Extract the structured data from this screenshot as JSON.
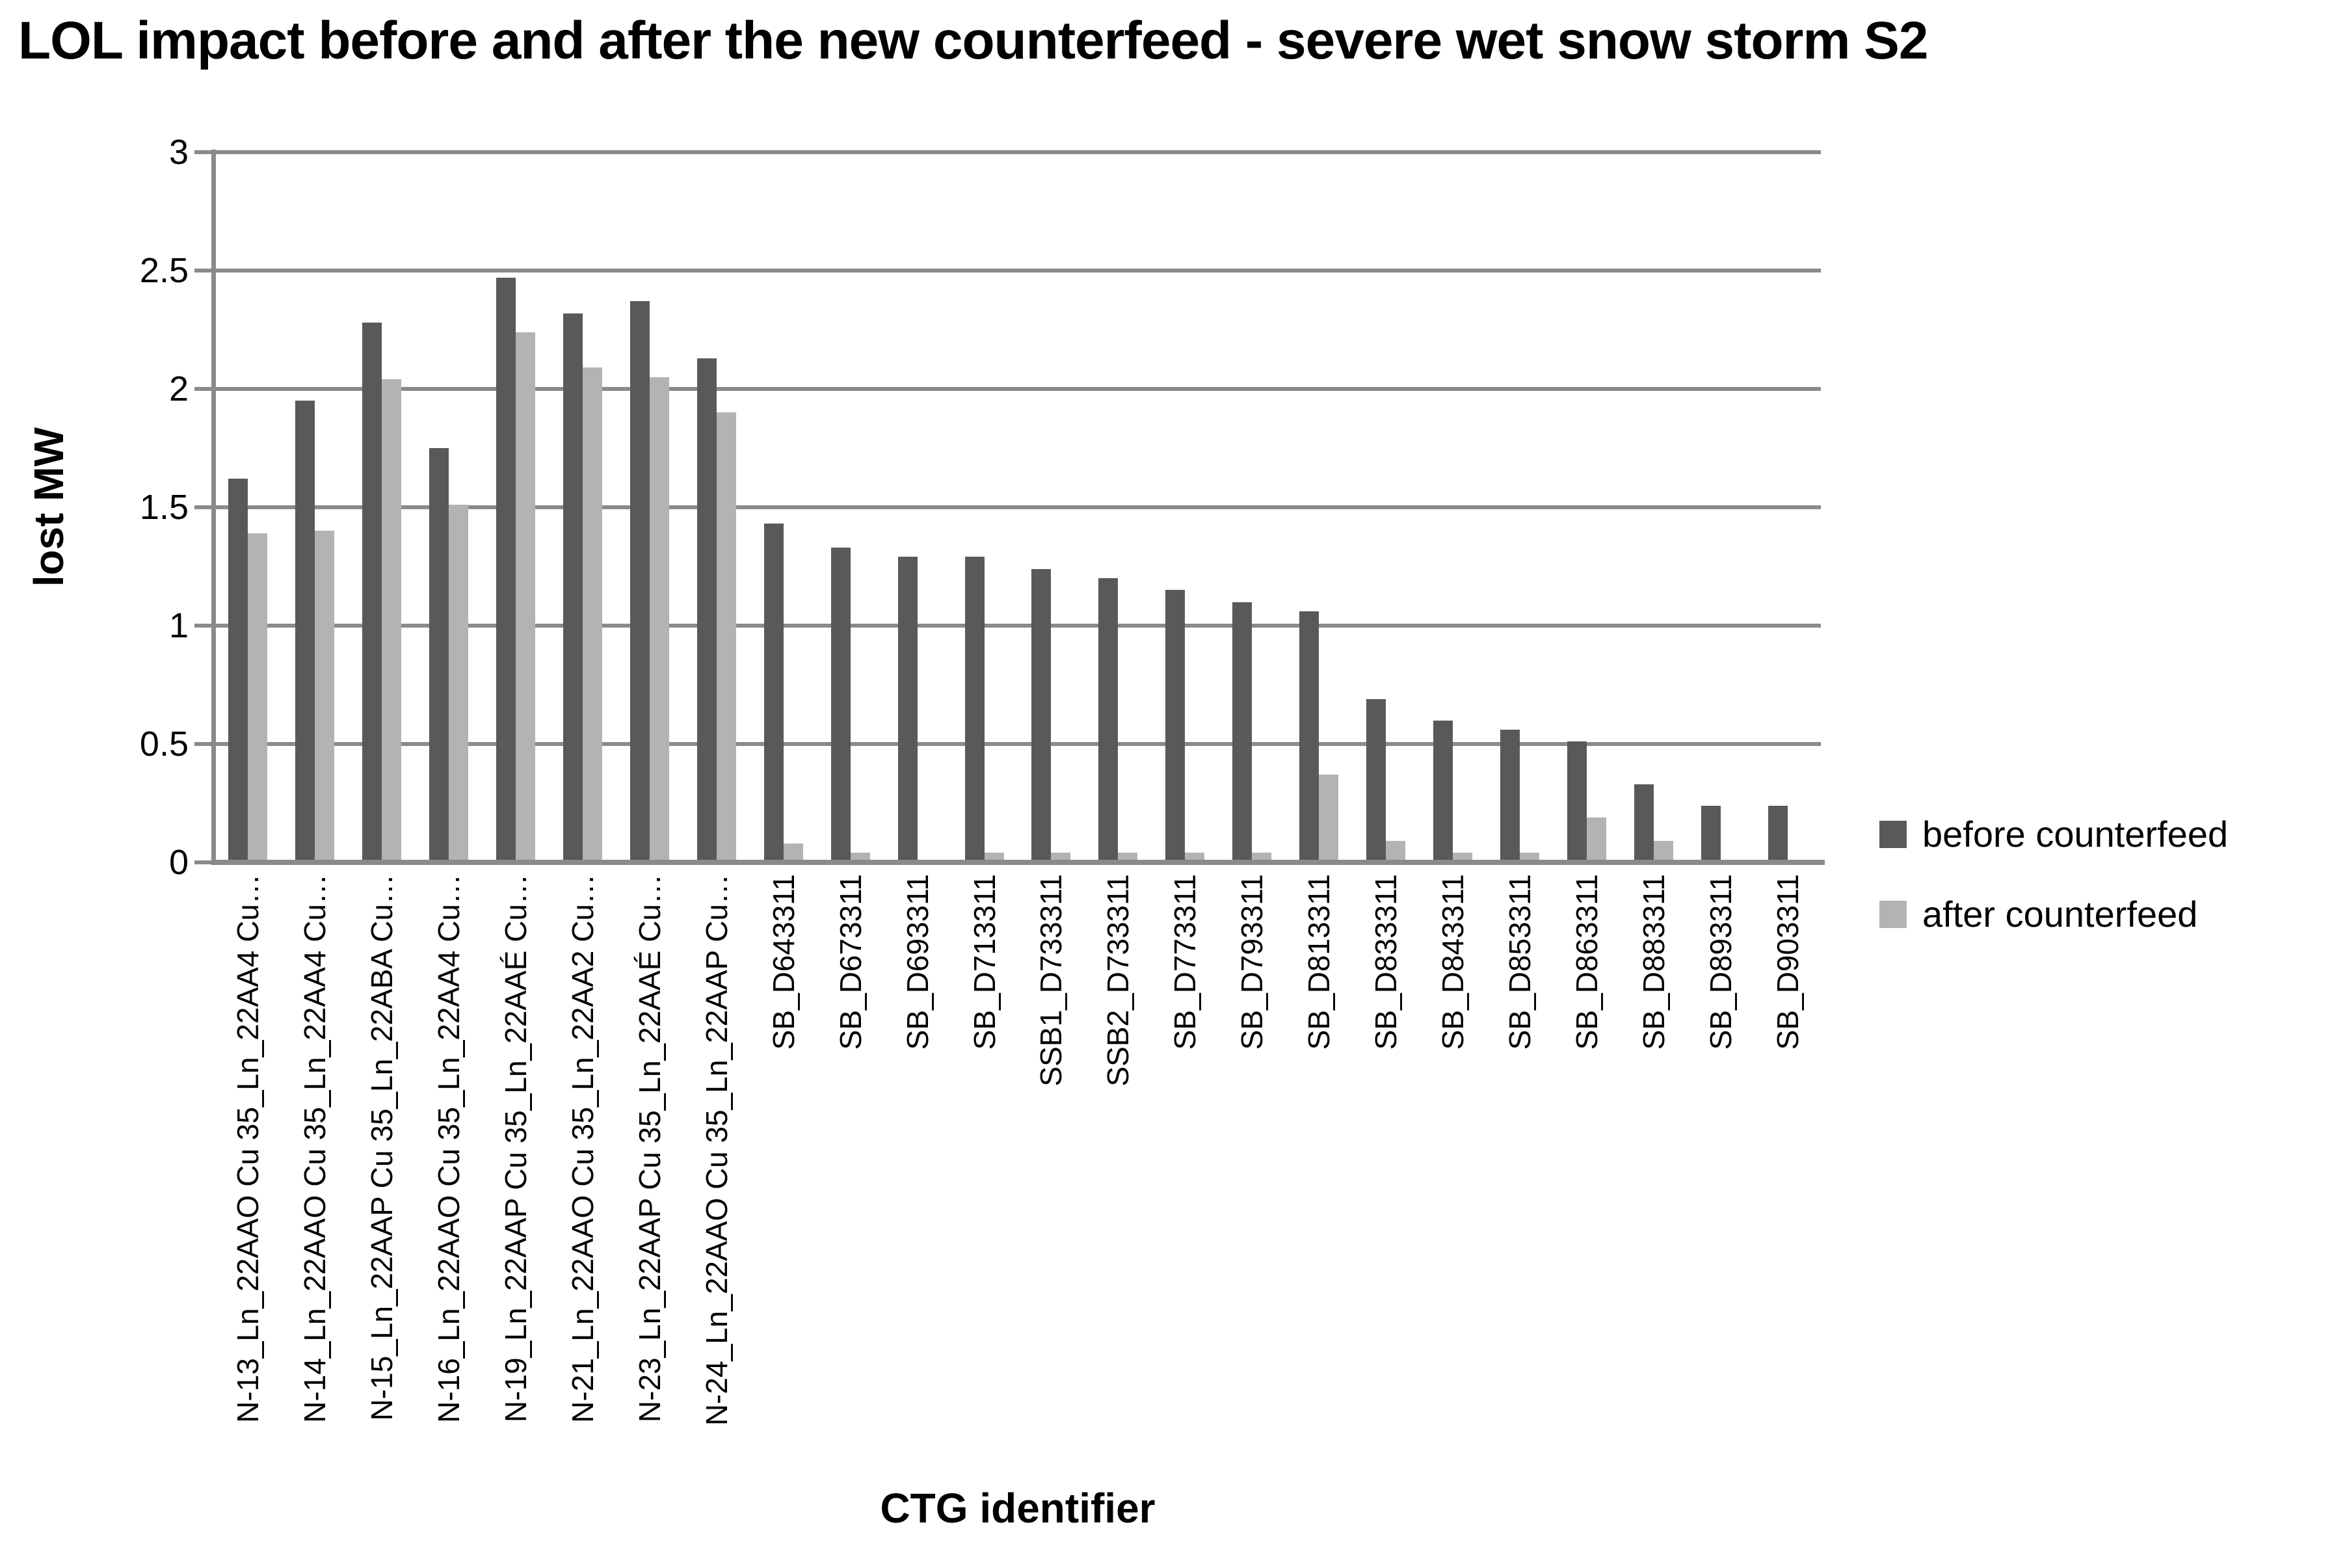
{
  "title": "LOL impact before and after the new counterfeed - severe wet snow storm S2",
  "chart_data": {
    "type": "bar",
    "title": "LOL impact before and after the new counterfeed - severe wet snow storm S2",
    "xlabel": "CTG identifier",
    "ylabel": "lost MW",
    "ylim": [
      0,
      3
    ],
    "yticks": [
      0,
      0.5,
      1,
      1.5,
      2,
      2.5,
      3
    ],
    "grid": true,
    "legend_position": "right",
    "categories": [
      "N-13_Ln_22AAO Cu 35_Ln_22AA4 Cu…",
      "N-14_Ln_22AAO Cu 35_Ln_22AA4 Cu…",
      "N-15_Ln_22AAP Cu 35_Ln_22ABA Cu…",
      "N-16_Ln_22AAO Cu 35_Ln_22AA4 Cu…",
      "N-19_Ln_22AAP Cu 35_Ln_22AAÉ Cu…",
      "N-21_Ln_22AAO Cu 35_Ln_22AA2 Cu…",
      "N-23_Ln_22AAP Cu 35_Ln_22AAÉ Cu…",
      "N-24_Ln_22AAO Cu 35_Ln_22AAP Cu…",
      "SB_D643311",
      "SB_D673311",
      "SB_D693311",
      "SB_D713311",
      "SSB1_D733311",
      "SSB2_D733311",
      "SB_D773311",
      "SB_D793311",
      "SB_D813311",
      "SB_D833311",
      "SB_D843311",
      "SB_D853311",
      "SB_D863311",
      "SB_D883311",
      "SB_D893311",
      "SB_D903311"
    ],
    "series": [
      {
        "name": "before counterfeed",
        "color": "#595959",
        "values": [
          1.62,
          1.95,
          2.28,
          1.75,
          2.47,
          2.32,
          2.37,
          2.13,
          1.43,
          1.33,
          1.29,
          1.29,
          1.24,
          1.2,
          1.15,
          1.1,
          1.06,
          0.69,
          0.6,
          0.56,
          0.51,
          0.33,
          0.24,
          0.24
        ]
      },
      {
        "name": "after counterfeed",
        "color": "#b3b3b3",
        "values": [
          1.39,
          1.4,
          2.04,
          1.51,
          2.24,
          2.09,
          2.05,
          1.9,
          0.08,
          0.04,
          0,
          0.04,
          0.04,
          0.04,
          0.04,
          0.04,
          0.37,
          0.09,
          0.04,
          0.04,
          0.19,
          0.09,
          0,
          0
        ]
      }
    ]
  },
  "colors": {
    "axis": "#8a8a8a",
    "gridline": "#8a8a8a",
    "text": "#000000",
    "background": "#ffffff"
  }
}
